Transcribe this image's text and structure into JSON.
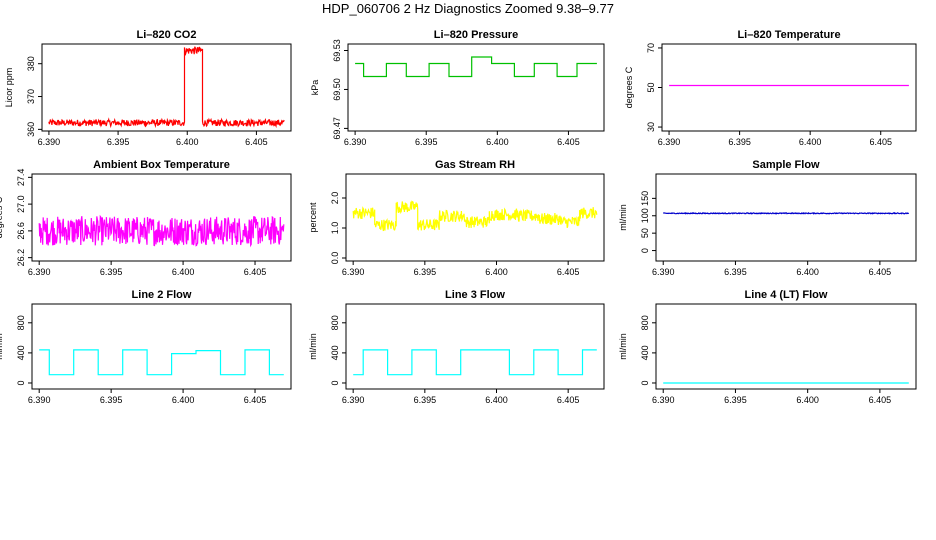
{
  "page": {
    "title": "HDP_060706  2 Hz Diagnostics Zoomed 9.38–9.77"
  },
  "chart_data": [
    {
      "type": "line",
      "title": "Li–820 CO2",
      "ylabel": "Licor ppm",
      "color": "#ff0000",
      "xlim": [
        6.3895,
        6.4075
      ],
      "ylim": [
        359.5,
        386
      ],
      "xticks": [
        "6.390",
        "6.395",
        "6.400",
        "6.405"
      ],
      "yticks": [
        "360",
        "370",
        "380"
      ],
      "segments": [
        {
          "x0": 6.39,
          "x1": 6.3998,
          "level": 362,
          "noise": 1.0
        },
        {
          "x0": 6.3998,
          "x1": 6.4011,
          "level": 384,
          "noise": 1.2
        },
        {
          "x0": 6.4011,
          "x1": 6.407,
          "level": 362,
          "noise": 1.0
        }
      ]
    },
    {
      "type": "line",
      "title": "Li–820 Pressure",
      "ylabel": "kPa",
      "color": "#00c000",
      "xlim": [
        6.3895,
        6.4075
      ],
      "ylim": [
        69.468,
        69.535
      ],
      "xticks": [
        "6.390",
        "6.395",
        "6.400",
        "6.405"
      ],
      "yticks": [
        "69.47",
        "69.50",
        "69.53"
      ],
      "segments": [
        {
          "x0": 6.39,
          "x1": 6.3906,
          "level": 69.52
        },
        {
          "x0": 6.3906,
          "x1": 6.3922,
          "level": 69.51
        },
        {
          "x0": 6.3922,
          "x1": 6.3936,
          "level": 69.52
        },
        {
          "x0": 6.3936,
          "x1": 6.3952,
          "level": 69.51
        },
        {
          "x0": 6.3952,
          "x1": 6.3966,
          "level": 69.52
        },
        {
          "x0": 6.3966,
          "x1": 6.3982,
          "level": 69.51
        },
        {
          "x0": 6.3982,
          "x1": 6.3996,
          "level": 69.525
        },
        {
          "x0": 6.3996,
          "x1": 6.4012,
          "level": 69.52
        },
        {
          "x0": 6.4012,
          "x1": 6.4026,
          "level": 69.51
        },
        {
          "x0": 6.4026,
          "x1": 6.4042,
          "level": 69.52
        },
        {
          "x0": 6.4042,
          "x1": 6.4056,
          "level": 69.51
        },
        {
          "x0": 6.4056,
          "x1": 6.407,
          "level": 69.52
        }
      ]
    },
    {
      "type": "line",
      "title": "Li–820 Temperature",
      "ylabel": "degrees C",
      "color": "#ff00ff",
      "xlim": [
        6.3895,
        6.4075
      ],
      "ylim": [
        28,
        72
      ],
      "xticks": [
        "6.390",
        "6.395",
        "6.400",
        "6.405"
      ],
      "yticks": [
        "30",
        "50",
        "70"
      ],
      "segments": [
        {
          "x0": 6.39,
          "x1": 6.407,
          "level": 51
        }
      ]
    },
    {
      "type": "line",
      "title": "Ambient Box Temperature",
      "ylabel": "degrees C",
      "color": "#ff00ff",
      "xlim": [
        6.3895,
        6.4075
      ],
      "ylim": [
        26.15,
        27.45
      ],
      "xticks": [
        "6.390",
        "6.395",
        "6.400",
        "6.405"
      ],
      "yticks": [
        "26.2",
        "26.6",
        "27.0",
        "27.4"
      ],
      "segments": [
        {
          "x0": 6.39,
          "x1": 6.407,
          "level": 26.6,
          "noise": 0.22
        }
      ]
    },
    {
      "type": "line",
      "title": "Gas Stream RH",
      "ylabel": "percent",
      "color": "#ffff00",
      "xlim": [
        6.3895,
        6.4075
      ],
      "ylim": [
        -0.1,
        2.8
      ],
      "xticks": [
        "6.390",
        "6.395",
        "6.400",
        "6.405"
      ],
      "yticks": [
        "0.0",
        "1.0",
        "2.0"
      ],
      "segments": [
        {
          "x0": 6.39,
          "x1": 6.3915,
          "level": 1.5,
          "noise": 0.2
        },
        {
          "x0": 6.3915,
          "x1": 6.393,
          "level": 1.1,
          "noise": 0.2
        },
        {
          "x0": 6.393,
          "x1": 6.3945,
          "level": 1.7,
          "noise": 0.2
        },
        {
          "x0": 6.3945,
          "x1": 6.396,
          "level": 1.1,
          "noise": 0.2
        },
        {
          "x0": 6.396,
          "x1": 6.3978,
          "level": 1.4,
          "noise": 0.2
        },
        {
          "x0": 6.3978,
          "x1": 6.3995,
          "level": 1.2,
          "noise": 0.2
        },
        {
          "x0": 6.3995,
          "x1": 6.4015,
          "level": 1.45,
          "noise": 0.2
        },
        {
          "x0": 6.4015,
          "x1": 6.403,
          "level": 1.4,
          "noise": 0.2
        },
        {
          "x0": 6.403,
          "x1": 6.4045,
          "level": 1.3,
          "noise": 0.2
        },
        {
          "x0": 6.4045,
          "x1": 6.4058,
          "level": 1.2,
          "noise": 0.2
        },
        {
          "x0": 6.4058,
          "x1": 6.407,
          "level": 1.5,
          "noise": 0.2
        }
      ]
    },
    {
      "type": "line",
      "title": "Sample Flow",
      "ylabel": "ml/min",
      "color": "#0000cc",
      "xlim": [
        6.3895,
        6.4075
      ],
      "ylim": [
        -30,
        220
      ],
      "xticks": [
        "6.390",
        "6.395",
        "6.400",
        "6.405"
      ],
      "yticks": [
        "0",
        "50",
        "100",
        "150"
      ],
      "segments": [
        {
          "x0": 6.39,
          "x1": 6.407,
          "level": 107,
          "noise": 1.2
        }
      ]
    },
    {
      "type": "line",
      "title": "Line 2 Flow",
      "ylabel": "ml/min",
      "color": "#00ffff",
      "xlim": [
        6.3895,
        6.4075
      ],
      "ylim": [
        -80,
        1050
      ],
      "xticks": [
        "6.390",
        "6.395",
        "6.400",
        "6.405"
      ],
      "yticks": [
        "0",
        "400",
        "800"
      ],
      "segments": [
        {
          "x0": 6.39,
          "x1": 6.3907,
          "level": 440
        },
        {
          "x0": 6.3907,
          "x1": 6.3924,
          "level": 110
        },
        {
          "x0": 6.3924,
          "x1": 6.3941,
          "level": 440
        },
        {
          "x0": 6.3941,
          "x1": 6.3958,
          "level": 110
        },
        {
          "x0": 6.3958,
          "x1": 6.3975,
          "level": 440
        },
        {
          "x0": 6.3975,
          "x1": 6.3992,
          "level": 110
        },
        {
          "x0": 6.3992,
          "x1": 6.4009,
          "level": 390
        },
        {
          "x0": 6.4009,
          "x1": 6.4026,
          "level": 430
        },
        {
          "x0": 6.4026,
          "x1": 6.4043,
          "level": 110
        },
        {
          "x0": 6.4043,
          "x1": 6.406,
          "level": 440
        },
        {
          "x0": 6.406,
          "x1": 6.407,
          "level": 110
        }
      ]
    },
    {
      "type": "line",
      "title": "Line 3 Flow",
      "ylabel": "ml/min",
      "color": "#00ffff",
      "xlim": [
        6.3895,
        6.4075
      ],
      "ylim": [
        -80,
        1050
      ],
      "xticks": [
        "6.390",
        "6.395",
        "6.400",
        "6.405"
      ],
      "yticks": [
        "0",
        "400",
        "800"
      ],
      "segments": [
        {
          "x0": 6.39,
          "x1": 6.3907,
          "level": 110
        },
        {
          "x0": 6.3907,
          "x1": 6.3924,
          "level": 440
        },
        {
          "x0": 6.3924,
          "x1": 6.3941,
          "level": 110
        },
        {
          "x0": 6.3941,
          "x1": 6.3958,
          "level": 440
        },
        {
          "x0": 6.3958,
          "x1": 6.3975,
          "level": 110
        },
        {
          "x0": 6.3975,
          "x1": 6.3992,
          "level": 440
        },
        {
          "x0": 6.3992,
          "x1": 6.4009,
          "level": 440
        },
        {
          "x0": 6.4009,
          "x1": 6.4026,
          "level": 110
        },
        {
          "x0": 6.4026,
          "x1": 6.4043,
          "level": 440
        },
        {
          "x0": 6.4043,
          "x1": 6.406,
          "level": 110
        },
        {
          "x0": 6.406,
          "x1": 6.407,
          "level": 440
        }
      ]
    },
    {
      "type": "line",
      "title": "Line 4 (LT) Flow",
      "ylabel": "ml/min",
      "color": "#00ffff",
      "xlim": [
        6.3895,
        6.4075
      ],
      "ylim": [
        -80,
        1050
      ],
      "xticks": [
        "6.390",
        "6.395",
        "6.400",
        "6.405"
      ],
      "yticks": [
        "0",
        "400",
        "800"
      ],
      "segments": [
        {
          "x0": 6.39,
          "x1": 6.407,
          "level": 0
        }
      ]
    }
  ]
}
